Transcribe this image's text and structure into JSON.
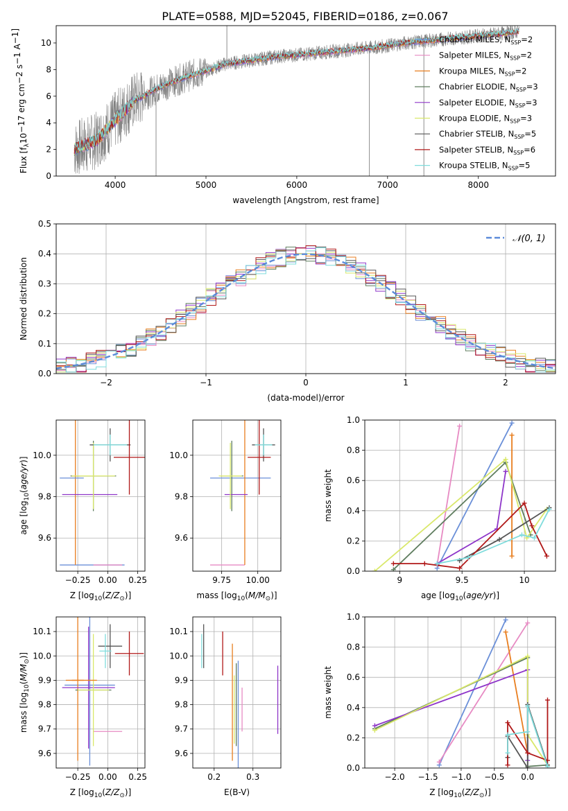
{
  "figure_title": "PLATE=0588, MJD=52045, FIBERID=0186, z=0.067",
  "models": [
    {
      "name": "Chabrier MILES",
      "nssp": "2",
      "color": "#6a8fd8"
    },
    {
      "name": "Salpeter MILES",
      "nssp": "2",
      "color": "#e78ac3"
    },
    {
      "name": "Kroupa MILES",
      "nssp": "2",
      "color": "#e87e1f"
    },
    {
      "name": "Chabrier ELODIE",
      "nssp": "3",
      "color": "#5f7d5f"
    },
    {
      "name": "Salpeter ELODIE",
      "nssp": "3",
      "color": "#8e35c9"
    },
    {
      "name": "Kroupa ELODIE",
      "nssp": "3",
      "color": "#d9e86a"
    },
    {
      "name": "Chabrier STELIB",
      "nssp": "5",
      "color": "#555555"
    },
    {
      "name": "Salpeter STELIB",
      "nssp": "6",
      "color": "#b01818"
    },
    {
      "name": "Kroupa STELIB",
      "nssp": "5",
      "color": "#7fdcdc"
    }
  ],
  "chart_data": [
    {
      "id": "spectrum",
      "type": "line",
      "title": "PLATE=0588, MJD=52045, FIBERID=0186, z=0.067",
      "xlabel": "wavelength [Angstrom, rest frame]",
      "ylabel_parts": [
        "Flux [f",
        "λ",
        "10",
        "−17",
        " erg cm",
        "−2",
        " s",
        "−1",
        " A",
        "−1",
        "]"
      ],
      "xlim": [
        3350,
        8850
      ],
      "ylim": [
        0,
        11.3
      ],
      "xticks": [
        4000,
        5000,
        6000,
        7000,
        8000
      ],
      "yticks": [
        0,
        2,
        4,
        6,
        8,
        10
      ],
      "data_color": "#808080",
      "continuum": {
        "x": [
          3550,
          3800,
          4000,
          4200,
          4500,
          4800,
          5000,
          5200,
          5500,
          5800,
          6000,
          6300,
          6600,
          6900,
          7200,
          7500,
          7800,
          8100,
          8400,
          8450
        ],
        "y": [
          2.0,
          2.7,
          4.2,
          5.6,
          6.7,
          7.5,
          7.9,
          8.4,
          8.7,
          9.0,
          9.1,
          9.3,
          9.5,
          9.7,
          10.0,
          10.2,
          10.4,
          10.6,
          10.8,
          10.9
        ]
      },
      "spikes": [
        {
          "x": 4450,
          "y": 0
        },
        {
          "x": 5230,
          "y": 11.3
        },
        {
          "x": 6800,
          "y": 0
        },
        {
          "x": 7400,
          "y": 0
        }
      ]
    },
    {
      "id": "residuals",
      "type": "step",
      "xlabel": "(data-model)/error",
      "ylabel": "Normed distribution",
      "xlim": [
        -2.5,
        2.5
      ],
      "ylim": [
        0,
        0.5
      ],
      "xticks": [
        -2,
        -1,
        0,
        1,
        2
      ],
      "xtick_labels": [
        "−2",
        "−1",
        "0",
        "1",
        "2"
      ],
      "yticks": [
        0,
        0.1,
        0.2,
        0.3,
        0.4,
        0.5
      ],
      "bin_width": 0.1,
      "reference_curve": {
        "label": "𝒩(0, 1)",
        "mean": 0,
        "sigma": 1,
        "color": "#5b8bd9"
      }
    },
    {
      "id": "age_vs_Z",
      "type": "errorbar",
      "xlabel": "Z [log10(Z/Z⊙)]",
      "ylabel": "age  [log10(age/yr)]",
      "xlim": [
        -0.43,
        0.31
      ],
      "ylim": [
        9.44,
        10.17
      ],
      "xticks": [
        -0.25,
        0.0,
        0.25
      ],
      "xtick_labels": [
        "−0.25",
        "0.00",
        "0.25"
      ],
      "yticks": [
        9.6,
        9.8,
        10.0
      ],
      "points": [
        {
          "m": 0,
          "x": -0.13,
          "y": 9.47,
          "xerr": 0.27,
          "yerr": 0.0
        },
        {
          "m": 1,
          "x": 0.0,
          "y": 9.47,
          "xerr": 0.12,
          "yerr": 0.0
        },
        {
          "m": 2,
          "x": -0.27,
          "y": 9.9,
          "xerr": 0.04,
          "yerr": 0.43
        },
        {
          "m": 3,
          "x": -0.12,
          "y": 9.9,
          "xerr": 0.19,
          "yerr": 0.17
        },
        {
          "m": 4,
          "x": -0.15,
          "y": 9.81,
          "xerr": 0.23,
          "yerr": 0.0
        },
        {
          "m": 5,
          "x": -0.12,
          "y": 9.9,
          "xerr": 0.18,
          "yerr": 0.16
        },
        {
          "m": 6,
          "x": 0.02,
          "y": 10.05,
          "xerr": 0.17,
          "yerr": 0.08
        },
        {
          "m": 7,
          "x": 0.18,
          "y": 9.99,
          "xerr": 0.13,
          "yerr": 0.18
        },
        {
          "m": 8,
          "x": 0.02,
          "y": 10.05,
          "xerr": 0.14,
          "yerr": 0.05
        },
        {
          "m": 0,
          "x": -0.3,
          "y": 9.89,
          "xerr": 0.1,
          "yerr": 0.0
        }
      ]
    },
    {
      "id": "age_vs_mass",
      "type": "errorbar",
      "xlabel": "mass [log10(M/M⊙)]",
      "ylabel": "",
      "xlim": [
        9.55,
        10.16
      ],
      "ylim": [
        9.44,
        10.17
      ],
      "xticks": [
        9.75,
        10.0
      ],
      "xtick_labels": [
        "9.75",
        "10.00"
      ],
      "yticks": [
        9.6,
        9.8,
        10.0
      ],
      "points": [
        {
          "m": 0,
          "x": 9.88,
          "y": 9.89,
          "xerr": 0.21,
          "yerr": 0.0
        },
        {
          "m": 1,
          "x": 9.79,
          "y": 9.47,
          "xerr": 0.12,
          "yerr": 0.0
        },
        {
          "m": 2,
          "x": 9.91,
          "y": 9.9,
          "xerr": 0.0,
          "yerr": 0.43
        },
        {
          "m": 3,
          "x": 9.82,
          "y": 9.9,
          "xerr": 0.08,
          "yerr": 0.17
        },
        {
          "m": 4,
          "x": 9.85,
          "y": 9.81,
          "xerr": 0.08,
          "yerr": 0.0
        },
        {
          "m": 5,
          "x": 9.81,
          "y": 9.9,
          "xerr": 0.08,
          "yerr": 0.16
        },
        {
          "m": 6,
          "x": 10.04,
          "y": 10.05,
          "xerr": 0.08,
          "yerr": 0.08
        },
        {
          "m": 7,
          "x": 10.01,
          "y": 9.99,
          "xerr": 0.08,
          "yerr": 0.18
        },
        {
          "m": 8,
          "x": 10.04,
          "y": 10.05,
          "xerr": 0.06,
          "yerr": 0.05
        }
      ]
    },
    {
      "id": "weight_vs_age",
      "type": "line",
      "xlabel": "age  [log10(age/yr)]",
      "ylabel": "mass weight",
      "xlim": [
        8.72,
        10.25
      ],
      "ylim": [
        0,
        1.0
      ],
      "xticks": [
        9.0,
        9.5,
        10.0
      ],
      "yticks": [
        0,
        0.2,
        0.4,
        0.6,
        0.8,
        1.0
      ],
      "series": [
        {
          "m": 0,
          "x": [
            9.3,
            9.9
          ],
          "y": [
            0.02,
            0.98
          ]
        },
        {
          "m": 1,
          "x": [
            9.3,
            9.48
          ],
          "y": [
            0.04,
            0.96
          ]
        },
        {
          "m": 2,
          "x": [
            9.9,
            9.9
          ],
          "y": [
            0.1,
            0.9
          ]
        },
        {
          "m": 3,
          "x": [
            8.95,
            9.85,
            10.05
          ],
          "y": [
            0.01,
            0.72,
            0.24
          ]
        },
        {
          "m": 4,
          "x": [
            9.3,
            9.78,
            9.85
          ],
          "y": [
            0.05,
            0.28,
            0.66
          ]
        },
        {
          "m": 5,
          "x": [
            8.8,
            9.85,
            10.02,
            10.18
          ],
          "y": [
            0.0,
            0.74,
            0.22,
            0.41
          ]
        },
        {
          "m": 6,
          "x": [
            9.48,
            9.8,
            10.2
          ],
          "y": [
            0.07,
            0.21,
            0.42
          ]
        },
        {
          "m": 7,
          "x": [
            8.95,
            9.2,
            9.48,
            10.0,
            10.06,
            10.18
          ],
          "y": [
            0.05,
            0.05,
            0.02,
            0.45,
            0.3,
            0.1
          ]
        },
        {
          "m": 8,
          "x": [
            9.3,
            9.55,
            9.98,
            10.08,
            10.2
          ],
          "y": [
            0.05,
            0.09,
            0.24,
            0.22,
            0.41
          ]
        }
      ]
    },
    {
      "id": "mass_vs_Z",
      "type": "errorbar",
      "xlabel": "Z [log10(Z/Z⊙)]",
      "ylabel": "mass [log10(M/M⊙)]",
      "xlim": [
        -0.43,
        0.31
      ],
      "ylim": [
        9.54,
        10.16
      ],
      "xticks": [
        -0.25,
        0.0,
        0.25
      ],
      "xtick_labels": [
        "−0.25",
        "0.00",
        "0.25"
      ],
      "yticks": [
        9.6,
        9.7,
        9.8,
        9.9,
        10.0,
        10.1
      ],
      "points": [
        {
          "m": 0,
          "x": -0.15,
          "y": 9.88,
          "xerr": 0.21,
          "yerr": 0.33
        },
        {
          "m": 1,
          "x": 0.0,
          "y": 9.69,
          "xerr": 0.12,
          "yerr": 0.0
        },
        {
          "m": 2,
          "x": -0.25,
          "y": 9.9,
          "xerr": 0.05,
          "yerr": 0.33
        },
        {
          "m": 3,
          "x": -0.12,
          "y": 9.86,
          "xerr": 0.15,
          "yerr": 0.0
        },
        {
          "m": 4,
          "x": -0.16,
          "y": 9.87,
          "xerr": 0.22,
          "yerr": 0.25
        },
        {
          "m": 5,
          "x": -0.12,
          "y": 9.86,
          "xerr": 0.13,
          "yerr": 0.23
        },
        {
          "m": 6,
          "x": 0.02,
          "y": 10.04,
          "xerr": 0.1,
          "yerr": 0.09
        },
        {
          "m": 7,
          "x": 0.18,
          "y": 10.01,
          "xerr": 0.12,
          "yerr": 0.09
        },
        {
          "m": 8,
          "x": -0.02,
          "y": 10.02,
          "xerr": 0.05,
          "yerr": 0.07
        },
        {
          "m": 2,
          "x": -0.22,
          "y": 9.9,
          "xerr": 0.13,
          "yerr": 0.0
        }
      ]
    },
    {
      "id": "mass_vs_ebv",
      "type": "errorbar",
      "xlabel": "E(B-V)",
      "ylabel": "",
      "xlim": [
        0.145,
        0.372
      ],
      "ylim": [
        9.54,
        10.16
      ],
      "xticks": [
        0.2,
        0.3
      ],
      "xtick_labels": [
        "0.2",
        "0.3"
      ],
      "yticks": [
        9.6,
        9.7,
        9.8,
        9.9,
        10.0,
        10.1
      ],
      "points": [
        {
          "m": 0,
          "x": 0.262,
          "y": 9.76,
          "xerr": 0.0,
          "yerr": 0.22
        },
        {
          "m": 1,
          "x": 0.272,
          "y": 9.78,
          "xerr": 0.0,
          "yerr": 0.09
        },
        {
          "m": 2,
          "x": 0.247,
          "y": 9.81,
          "xerr": 0.0,
          "yerr": 0.24
        },
        {
          "m": 3,
          "x": 0.257,
          "y": 9.8,
          "xerr": 0.0,
          "yerr": 0.17
        },
        {
          "m": 4,
          "x": 0.364,
          "y": 9.82,
          "xerr": 0.0,
          "yerr": 0.14
        },
        {
          "m": 5,
          "x": 0.252,
          "y": 9.78,
          "xerr": 0.0,
          "yerr": 0.14
        },
        {
          "m": 6,
          "x": 0.173,
          "y": 10.04,
          "xerr": 0.0,
          "yerr": 0.09
        },
        {
          "m": 7,
          "x": 0.222,
          "y": 10.01,
          "xerr": 0.0,
          "yerr": 0.09
        },
        {
          "m": 8,
          "x": 0.168,
          "y": 10.02,
          "xerr": 0.0,
          "yerr": 0.07
        }
      ]
    },
    {
      "id": "weight_vs_Z",
      "type": "line",
      "xlabel": "Z [log10(Z/Z⊙)]",
      "ylabel": "mass weight",
      "xlim": [
        -2.45,
        0.42
      ],
      "ylim": [
        0,
        1.0
      ],
      "xticks": [
        -2.0,
        -1.5,
        -1.0,
        -0.5,
        0.0
      ],
      "xtick_labels": [
        "−2.0",
        "−1.5",
        "−1.0",
        "−0.5",
        "0.0"
      ],
      "yticks": [
        0,
        0.2,
        0.4,
        0.6,
        0.8,
        1.0
      ],
      "series": [
        {
          "m": 0,
          "x": [
            -1.33,
            -0.33
          ],
          "y": [
            0.02,
            0.98
          ]
        },
        {
          "m": 1,
          "x": [
            -1.33,
            0.0
          ],
          "y": [
            0.04,
            0.96
          ]
        },
        {
          "m": 2,
          "x": [
            -0.33,
            0.0
          ],
          "y": [
            0.9,
            0.1
          ]
        },
        {
          "m": 3,
          "x": [
            -2.3,
            0.0,
            0.0,
            0.3
          ],
          "y": [
            0.26,
            0.73,
            0.01,
            0.02
          ]
        },
        {
          "m": 4,
          "x": [
            -2.3,
            0.0,
            0.0
          ],
          "y": [
            0.28,
            0.65,
            0.05
          ]
        },
        {
          "m": 5,
          "x": [
            -2.3,
            0.0,
            0.0,
            0.3
          ],
          "y": [
            0.25,
            0.74,
            0.22,
            0.02
          ]
        },
        {
          "m": 6,
          "x": [
            -0.3,
            -0.3,
            0.0,
            0.0,
            0.3
          ],
          "y": [
            0.07,
            0.21,
            0.0,
            0.42,
            0.02
          ]
        },
        {
          "m": 7,
          "x": [
            -0.3,
            -0.3,
            0.0,
            0.3,
            0.3
          ],
          "y": [
            0.02,
            0.3,
            0.1,
            0.05,
            0.45
          ]
        },
        {
          "m": 8,
          "x": [
            -0.3,
            -0.3,
            0.0,
            0.0,
            0.3
          ],
          "y": [
            0.1,
            0.22,
            0.24,
            0.41,
            0.01
          ]
        }
      ]
    }
  ]
}
